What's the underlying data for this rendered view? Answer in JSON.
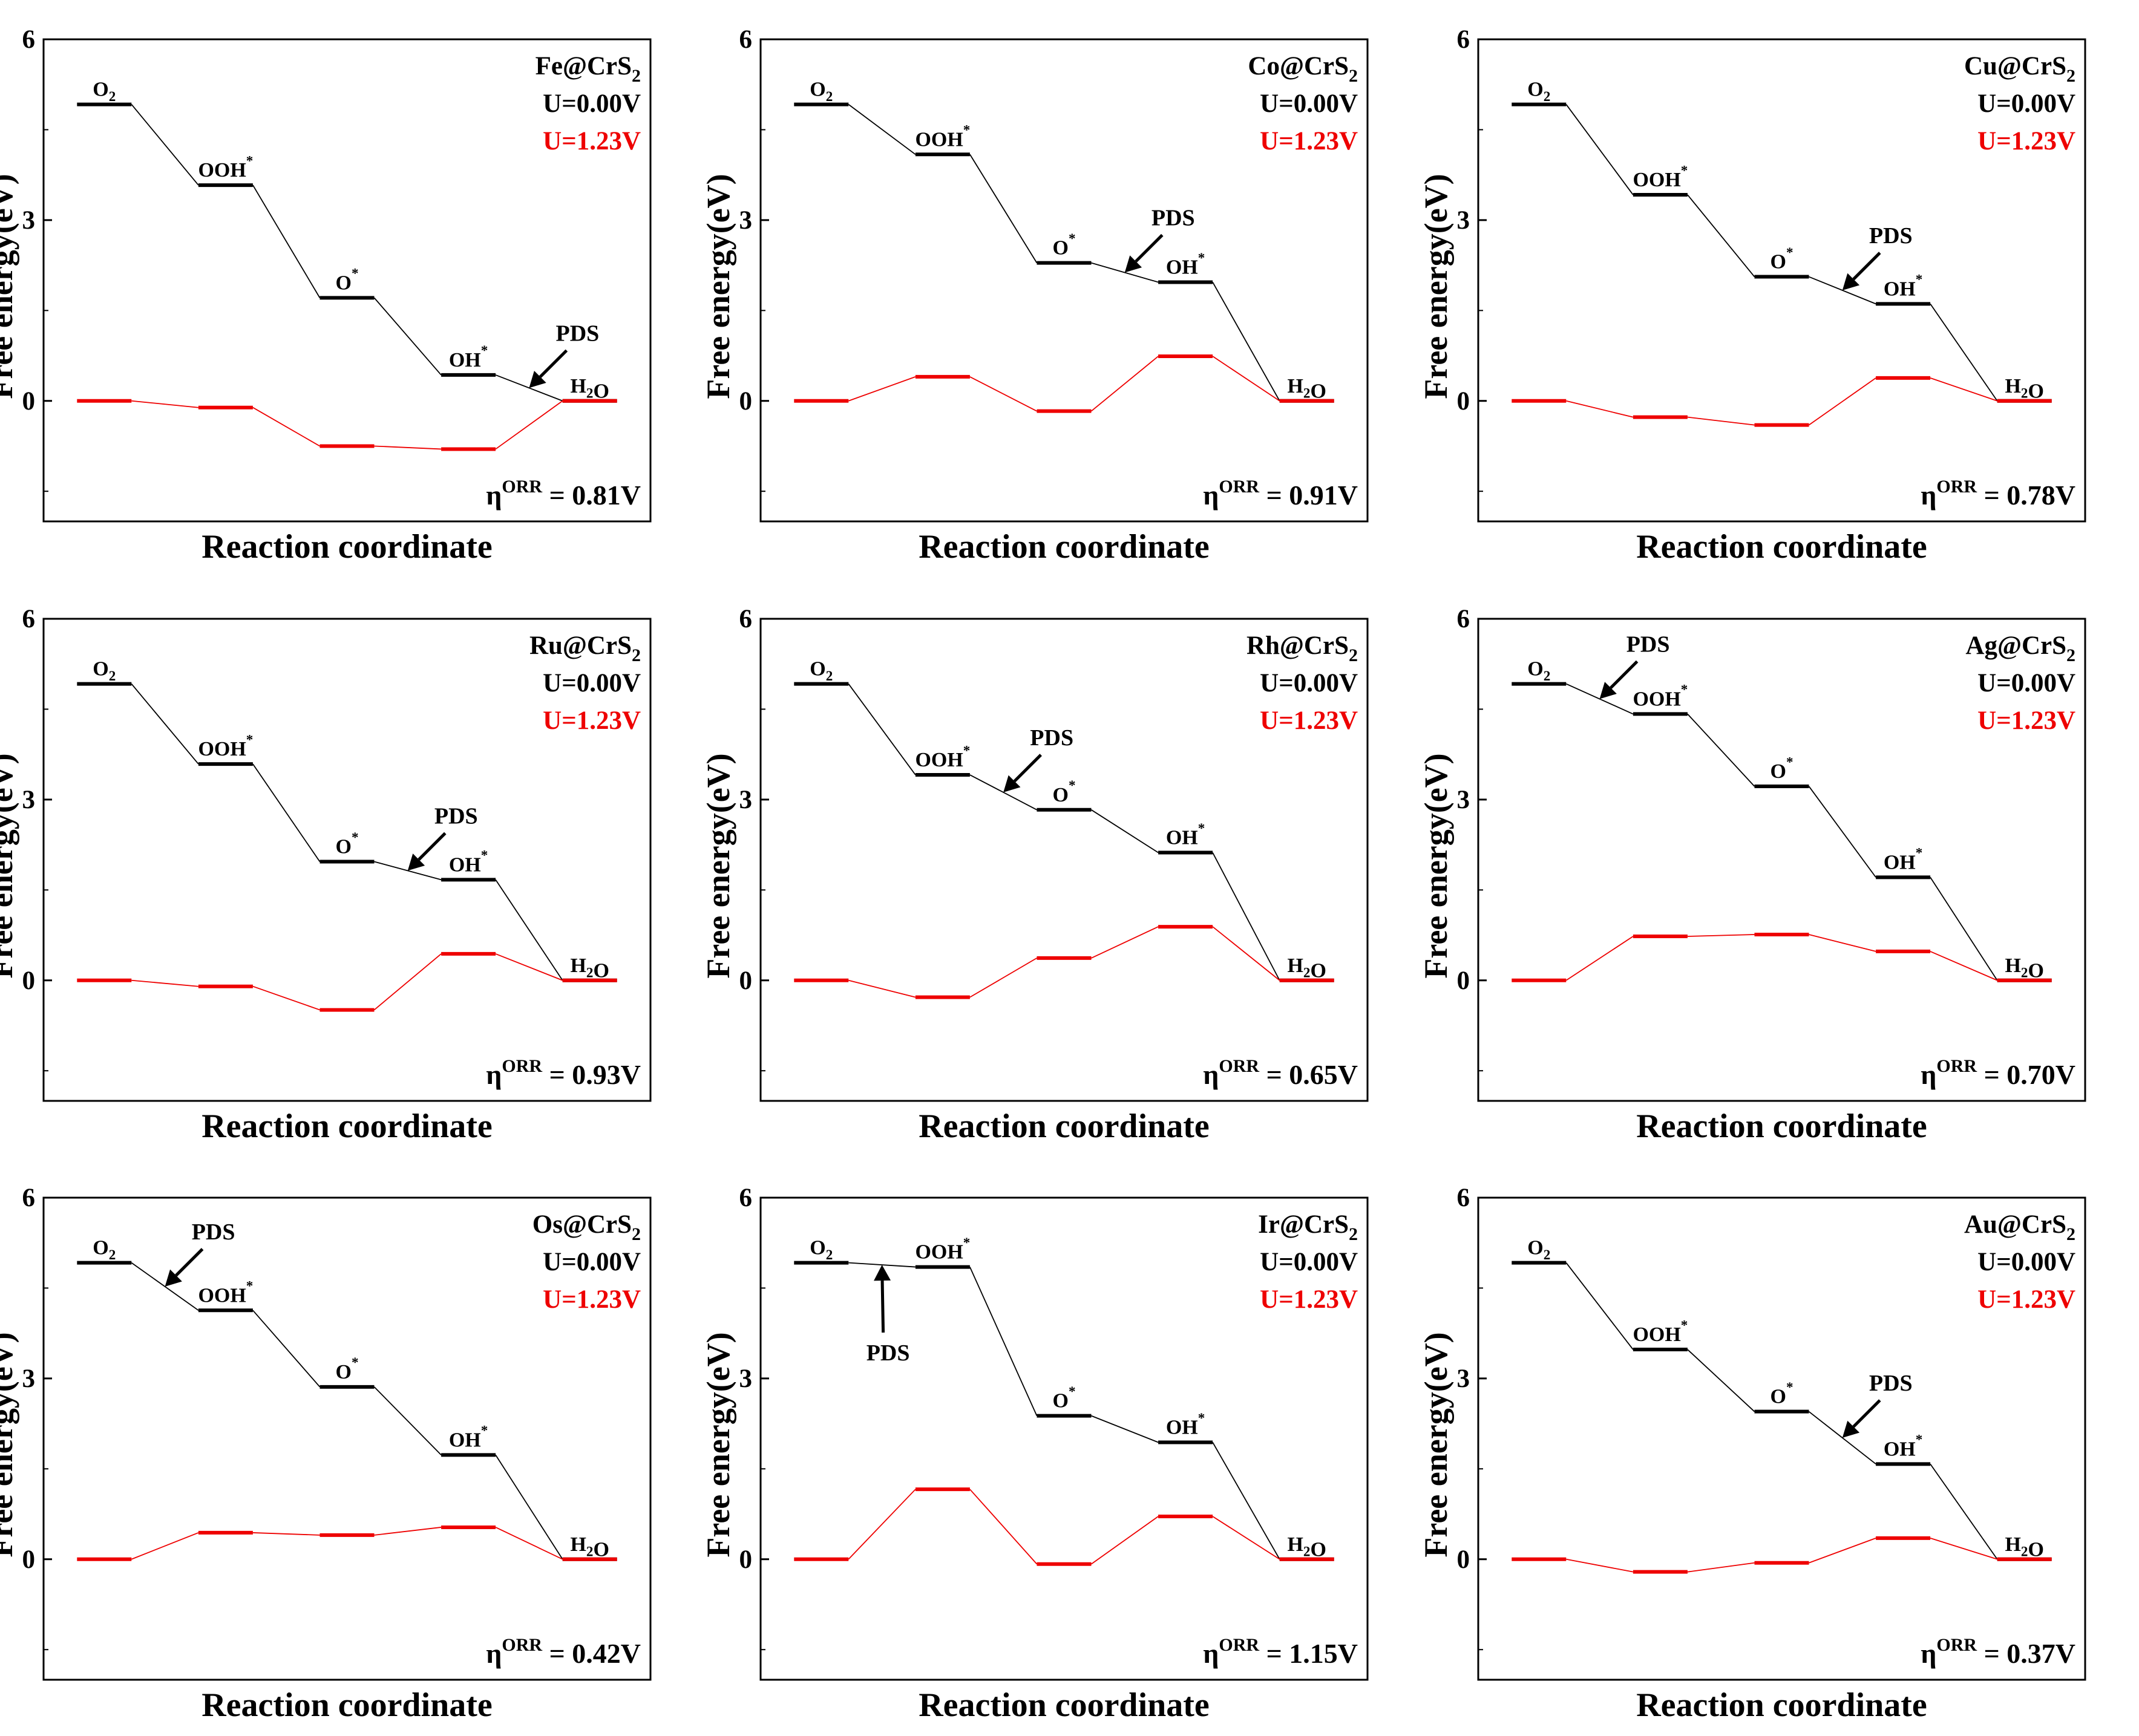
{
  "chart_data": [
    {
      "type": "line",
      "chart_subtype": "free-energy-step-diagram",
      "catalyst_label": "Fe@CrS",
      "catalyst_subscript": "2",
      "ylabel": "Free energy(eV)",
      "xlabel": "Reaction coordinate",
      "ylim": [
        -2,
        6
      ],
      "yticks": [
        "6",
        "3",
        "0"
      ],
      "categories": [
        "O2",
        "OOH*",
        "O*",
        "OH*",
        "H2O"
      ],
      "series": [
        {
          "name": "U=0.00V",
          "color": "#000000",
          "values": [
            4.92,
            3.58,
            1.71,
            0.43,
            0.0
          ]
        },
        {
          "name": "U=1.23V",
          "color": "#ee0000",
          "values": [
            0.0,
            -0.11,
            -0.75,
            -0.8,
            0.0
          ]
        }
      ],
      "pds_text": "PDS",
      "pds_step": 3,
      "pds_placement": "above",
      "overpotential_symbol": "η",
      "overpotential_superscript": "ORR",
      "overpotential_value": " = 0.81V"
    },
    {
      "type": "line",
      "chart_subtype": "free-energy-step-diagram",
      "catalyst_label": "Co@CrS",
      "catalyst_subscript": "2",
      "ylabel": "Free energy(eV)",
      "xlabel": "Reaction coordinate",
      "ylim": [
        -2,
        6
      ],
      "yticks": [
        "6",
        "3",
        "0"
      ],
      "categories": [
        "O2",
        "OOH*",
        "O*",
        "OH*",
        "H2O"
      ],
      "series": [
        {
          "name": "U=0.00V",
          "color": "#000000",
          "values": [
            4.92,
            4.09,
            2.29,
            1.97,
            0.0
          ]
        },
        {
          "name": "U=1.23V",
          "color": "#ee0000",
          "values": [
            0.0,
            0.4,
            -0.17,
            0.74,
            0.0
          ]
        }
      ],
      "pds_text": "PDS",
      "pds_step": 2,
      "pds_placement": "above",
      "overpotential_symbol": "η",
      "overpotential_superscript": "ORR",
      "overpotential_value": " = 0.91V"
    },
    {
      "type": "line",
      "chart_subtype": "free-energy-step-diagram",
      "catalyst_label": "Cu@CrS",
      "catalyst_subscript": "2",
      "ylabel": "Free energy(eV)",
      "xlabel": "Reaction coordinate",
      "ylim": [
        -2,
        6
      ],
      "yticks": [
        "6",
        "3",
        "0"
      ],
      "categories": [
        "O2",
        "OOH*",
        "O*",
        "OH*",
        "H2O"
      ],
      "series": [
        {
          "name": "U=0.00V",
          "color": "#000000",
          "values": [
            4.92,
            3.42,
            2.06,
            1.61,
            0.0
          ]
        },
        {
          "name": "U=1.23V",
          "color": "#ee0000",
          "values": [
            0.0,
            -0.27,
            -0.4,
            0.38,
            0.0
          ]
        }
      ],
      "pds_text": "PDS",
      "pds_step": 2,
      "pds_placement": "above",
      "overpotential_symbol": "η",
      "overpotential_superscript": "ORR",
      "overpotential_value": " = 0.78V"
    },
    {
      "type": "line",
      "chart_subtype": "free-energy-step-diagram",
      "catalyst_label": "Ru@CrS",
      "catalyst_subscript": "2",
      "ylabel": "Free energy(eV)",
      "xlabel": "Reaction coordinate",
      "ylim": [
        -2,
        6
      ],
      "yticks": [
        "6",
        "3",
        "0"
      ],
      "categories": [
        "O2",
        "OOH*",
        "O*",
        "OH*",
        "H2O"
      ],
      "series": [
        {
          "name": "U=0.00V",
          "color": "#000000",
          "values": [
            4.92,
            3.59,
            1.97,
            1.67,
            0.0
          ]
        },
        {
          "name": "U=1.23V",
          "color": "#ee0000",
          "values": [
            0.0,
            -0.1,
            -0.49,
            0.44,
            0.0
          ]
        }
      ],
      "pds_text": "PDS",
      "pds_step": 2,
      "pds_placement": "above",
      "overpotential_symbol": "η",
      "overpotential_superscript": "ORR",
      "overpotential_value": " = 0.93V"
    },
    {
      "type": "line",
      "chart_subtype": "free-energy-step-diagram",
      "catalyst_label": "Rh@CrS",
      "catalyst_subscript": "2",
      "ylabel": "Free energy(eV)",
      "xlabel": "Reaction coordinate",
      "ylim": [
        -2,
        6
      ],
      "yticks": [
        "6",
        "3",
        "0"
      ],
      "categories": [
        "O2",
        "OOH*",
        "O*",
        "OH*",
        "H2O"
      ],
      "series": [
        {
          "name": "U=0.00V",
          "color": "#000000",
          "values": [
            4.92,
            3.41,
            2.83,
            2.12,
            0.0
          ]
        },
        {
          "name": "U=1.23V",
          "color": "#ee0000",
          "values": [
            0.0,
            -0.28,
            0.37,
            0.89,
            0.0
          ]
        }
      ],
      "pds_text": "PDS",
      "pds_step": 1,
      "pds_placement": "above",
      "overpotential_symbol": "η",
      "overpotential_superscript": "ORR",
      "overpotential_value": " = 0.65V"
    },
    {
      "type": "line",
      "chart_subtype": "free-energy-step-diagram",
      "catalyst_label": "Ag@CrS",
      "catalyst_subscript": "2",
      "ylabel": "Free energy(eV)",
      "xlabel": "Reaction coordinate",
      "ylim": [
        -2,
        6
      ],
      "yticks": [
        "6",
        "3",
        "0"
      ],
      "categories": [
        "O2",
        "OOH*",
        "O*",
        "OH*",
        "H2O"
      ],
      "series": [
        {
          "name": "U=0.00V",
          "color": "#000000",
          "values": [
            4.92,
            4.42,
            3.22,
            1.71,
            0.0
          ]
        },
        {
          "name": "U=1.23V",
          "color": "#ee0000",
          "values": [
            0.0,
            0.73,
            0.76,
            0.48,
            0.0
          ]
        }
      ],
      "pds_text": "PDS",
      "pds_step": 0,
      "pds_placement": "above",
      "overpotential_symbol": "η",
      "overpotential_superscript": "ORR",
      "overpotential_value": " = 0.70V"
    },
    {
      "type": "line",
      "chart_subtype": "free-energy-step-diagram",
      "catalyst_label": "Os@CrS",
      "catalyst_subscript": "2",
      "ylabel": "Free energy(eV)",
      "xlabel": "Reaction coordinate",
      "ylim": [
        -2,
        6
      ],
      "yticks": [
        "6",
        "3",
        "0"
      ],
      "categories": [
        "O2",
        "OOH*",
        "O*",
        "OH*",
        "H2O"
      ],
      "series": [
        {
          "name": "U=0.00V",
          "color": "#000000",
          "values": [
            4.92,
            4.13,
            2.86,
            1.73,
            0.0
          ]
        },
        {
          "name": "U=1.23V",
          "color": "#ee0000",
          "values": [
            0.0,
            0.44,
            0.4,
            0.53,
            0.0
          ]
        }
      ],
      "pds_text": "PDS",
      "pds_step": 0,
      "pds_placement": "above",
      "overpotential_symbol": "η",
      "overpotential_superscript": "ORR",
      "overpotential_value": " = 0.42V"
    },
    {
      "type": "line",
      "chart_subtype": "free-energy-step-diagram",
      "catalyst_label": "Ir@CrS",
      "catalyst_subscript": "2",
      "ylabel": "Free energy(eV)",
      "xlabel": "Reaction coordinate",
      "ylim": [
        -2,
        6
      ],
      "yticks": [
        "6",
        "3",
        "0"
      ],
      "categories": [
        "O2",
        "OOH*",
        "O*",
        "OH*",
        "H2O"
      ],
      "series": [
        {
          "name": "U=0.00V",
          "color": "#000000",
          "values": [
            4.92,
            4.85,
            2.38,
            1.94,
            0.0
          ]
        },
        {
          "name": "U=1.23V",
          "color": "#ee0000",
          "values": [
            0.0,
            1.16,
            -0.08,
            0.71,
            0.0
          ]
        }
      ],
      "pds_text": "PDS",
      "pds_step": 0,
      "pds_placement": "below",
      "overpotential_symbol": "η",
      "overpotential_superscript": "ORR",
      "overpotential_value": " = 1.15V"
    },
    {
      "type": "line",
      "chart_subtype": "free-energy-step-diagram",
      "catalyst_label": "Au@CrS",
      "catalyst_subscript": "2",
      "ylabel": "Free energy(eV)",
      "xlabel": "Reaction coordinate",
      "ylim": [
        -2,
        6
      ],
      "yticks": [
        "6",
        "3",
        "0"
      ],
      "categories": [
        "O2",
        "OOH*",
        "O*",
        "OH*",
        "H2O"
      ],
      "series": [
        {
          "name": "U=0.00V",
          "color": "#000000",
          "values": [
            4.92,
            3.48,
            2.45,
            1.58,
            0.0
          ]
        },
        {
          "name": "U=1.23V",
          "color": "#ee0000",
          "values": [
            0.0,
            -0.21,
            -0.06,
            0.35,
            0.0
          ]
        }
      ],
      "pds_text": "PDS",
      "pds_step": 2,
      "pds_placement": "above",
      "overpotential_symbol": "η",
      "overpotential_superscript": "ORR",
      "overpotential_value": " = 0.37V"
    }
  ]
}
